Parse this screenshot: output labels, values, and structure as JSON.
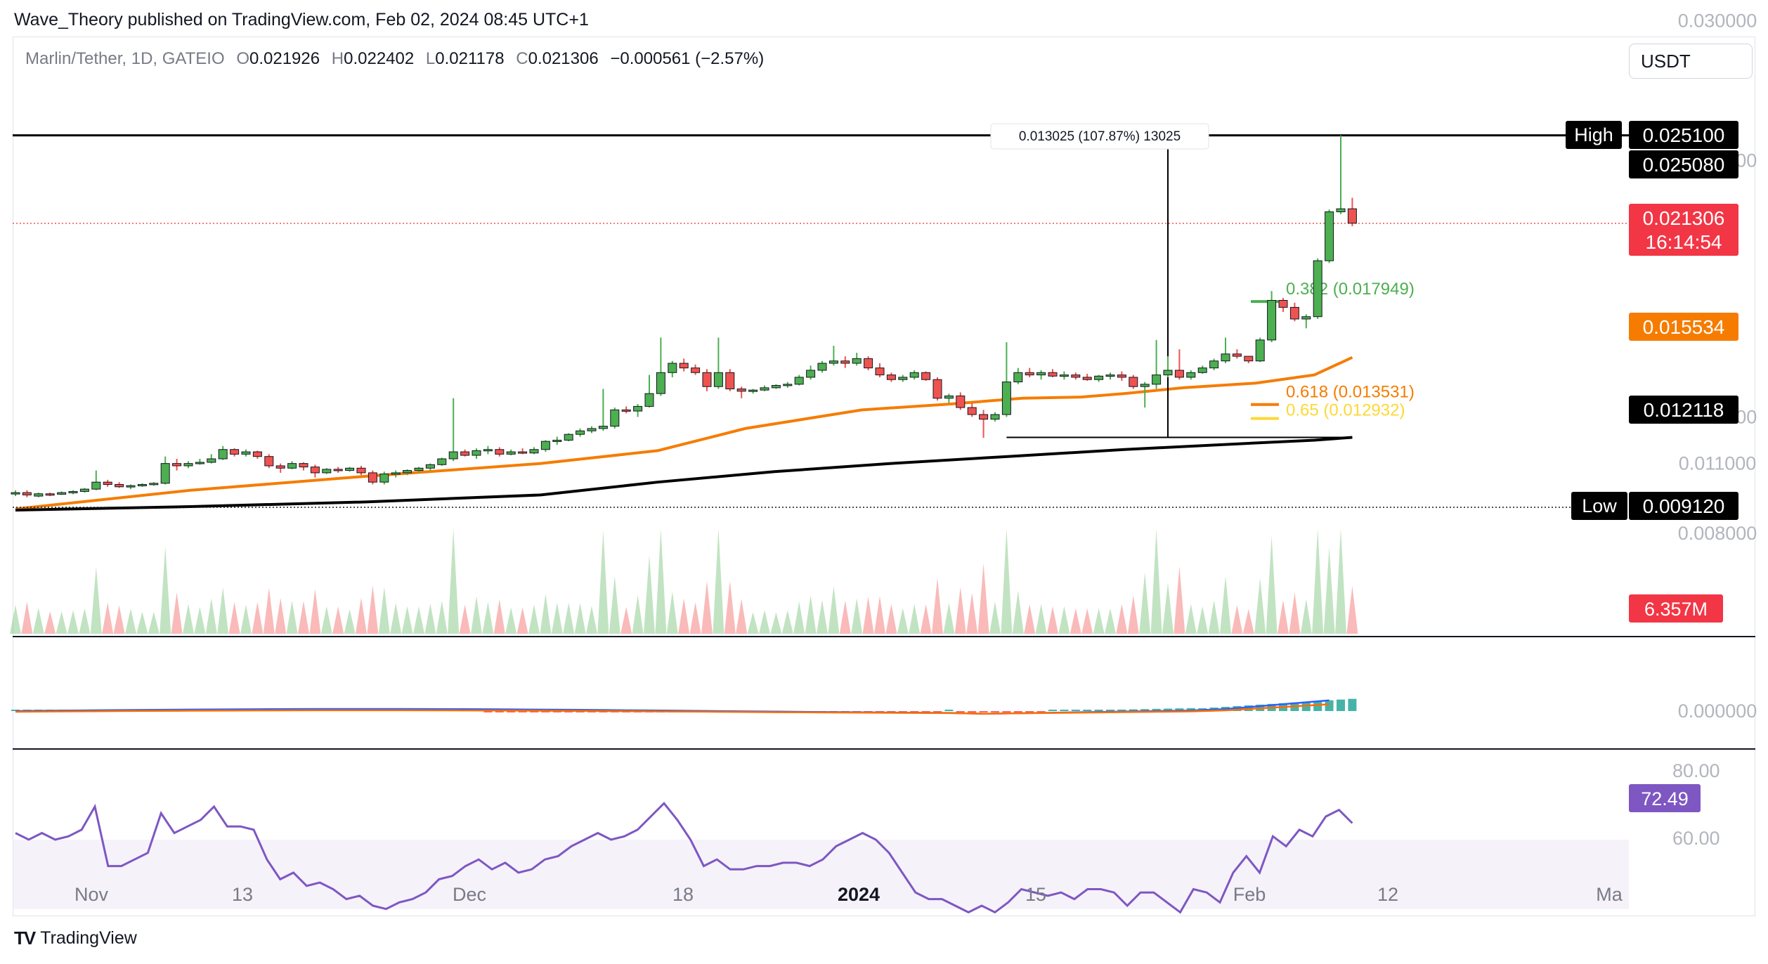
{
  "publisher_line": "Wave_Theory published on TradingView.com, Feb 02, 2024 08:45 UTC+1",
  "legend": {
    "symbol": "Marlin/Tether, 1D, GATEIO",
    "open_label": "O",
    "open": "0.021926",
    "high_label": "H",
    "high": "0.022402",
    "low_label": "L",
    "low": "0.021178",
    "close_label": "C",
    "close": "0.021306",
    "change": "−0.000561 (−2.57%)"
  },
  "currency_button": "USDT",
  "branding": {
    "logo_mark": "TV",
    "logo_text": "TradingView"
  },
  "colors": {
    "up": "#26a69a",
    "up_body": "#4caf50",
    "down": "#ef5350",
    "ema50": "#f57c00",
    "ema200": "#000000",
    "macd": "#2962ff",
    "signal": "#ff6d00",
    "rsi": "#7e57c2",
    "fib_382": "#4caf50",
    "fib_618": "#f57c00",
    "fib_65": "#fdd835"
  },
  "chart_data": {
    "type": "candlestick",
    "price_axis_labels": [
      "0.030000",
      "0.024000",
      "0.013000",
      "0.011000",
      "0.008000"
    ],
    "time_axis_labels": [
      "Nov",
      "13",
      "Dec",
      "18",
      "2024",
      "15",
      "Feb",
      "12",
      "Ma"
    ],
    "candles": [
      [
        0.00975,
        0.00985,
        0.0096,
        0.00975
      ],
      [
        0.00975,
        0.00985,
        0.00955,
        0.00965
      ],
      [
        0.0096,
        0.00975,
        0.00955,
        0.0097
      ],
      [
        0.0097,
        0.00975,
        0.0096,
        0.00968
      ],
      [
        0.00968,
        0.0098,
        0.00965,
        0.00975
      ],
      [
        0.00975,
        0.00985,
        0.00968,
        0.0098
      ],
      [
        0.0098,
        0.00995,
        0.00975,
        0.0099
      ],
      [
        0.0099,
        0.0107,
        0.00985,
        0.0102
      ],
      [
        0.0102,
        0.0103,
        0.01,
        0.0101
      ],
      [
        0.0101,
        0.0102,
        0.00995,
        0.01
      ],
      [
        0.01,
        0.0101,
        0.0099,
        0.01005
      ],
      [
        0.01005,
        0.01015,
        0.01,
        0.0101
      ],
      [
        0.0101,
        0.0102,
        0.01005,
        0.01015
      ],
      [
        0.01015,
        0.0113,
        0.0101,
        0.011
      ],
      [
        0.011,
        0.0112,
        0.0107,
        0.0109
      ],
      [
        0.0109,
        0.0111,
        0.0108,
        0.011
      ],
      [
        0.011,
        0.0112,
        0.01095,
        0.01105
      ],
      [
        0.01105,
        0.0114,
        0.011,
        0.0112
      ],
      [
        0.0112,
        0.01175,
        0.01115,
        0.0116
      ],
      [
        0.0116,
        0.01165,
        0.0113,
        0.0114
      ],
      [
        0.0114,
        0.0116,
        0.0113,
        0.0115
      ],
      [
        0.0115,
        0.01155,
        0.0112,
        0.0113
      ],
      [
        0.0113,
        0.0114,
        0.0108,
        0.0109
      ],
      [
        0.0109,
        0.011,
        0.0106,
        0.0108
      ],
      [
        0.0108,
        0.0111,
        0.01075,
        0.011
      ],
      [
        0.011,
        0.01105,
        0.0107,
        0.01085
      ],
      [
        0.01085,
        0.01095,
        0.0104,
        0.0106
      ],
      [
        0.0106,
        0.0108,
        0.01055,
        0.01075
      ],
      [
        0.01075,
        0.01085,
        0.0106,
        0.0107
      ],
      [
        0.0107,
        0.01085,
        0.01065,
        0.0108
      ],
      [
        0.0108,
        0.0109,
        0.0105,
        0.0106
      ],
      [
        0.0106,
        0.0107,
        0.0101,
        0.0102
      ],
      [
        0.0102,
        0.01065,
        0.0101,
        0.01055
      ],
      [
        0.01055,
        0.0107,
        0.0104,
        0.0106
      ],
      [
        0.0106,
        0.01075,
        0.0105,
        0.0107
      ],
      [
        0.0107,
        0.01085,
        0.0106,
        0.0108
      ],
      [
        0.0108,
        0.011,
        0.0107,
        0.01095
      ],
      [
        0.01095,
        0.01125,
        0.0109,
        0.0112
      ],
      [
        0.0112,
        0.0138,
        0.0111,
        0.0115
      ],
      [
        0.0115,
        0.0116,
        0.0113,
        0.01135
      ],
      [
        0.01135,
        0.01165,
        0.0112,
        0.01155
      ],
      [
        0.01155,
        0.01175,
        0.0114,
        0.0116
      ],
      [
        0.0116,
        0.0117,
        0.0113,
        0.0114
      ],
      [
        0.0114,
        0.0116,
        0.01135,
        0.0115
      ],
      [
        0.0115,
        0.01165,
        0.0114,
        0.01145
      ],
      [
        0.01145,
        0.0117,
        0.0114,
        0.0116
      ],
      [
        0.0116,
        0.012,
        0.0115,
        0.01195
      ],
      [
        0.01195,
        0.01215,
        0.0118,
        0.012
      ],
      [
        0.012,
        0.0123,
        0.01195,
        0.01225
      ],
      [
        0.01225,
        0.0125,
        0.01215,
        0.0124
      ],
      [
        0.0124,
        0.0126,
        0.0123,
        0.0125
      ],
      [
        0.0125,
        0.0142,
        0.0124,
        0.0126
      ],
      [
        0.0126,
        0.0134,
        0.0125,
        0.0133
      ],
      [
        0.0133,
        0.01345,
        0.01315,
        0.01325
      ],
      [
        0.01325,
        0.01355,
        0.013,
        0.01345
      ],
      [
        0.01345,
        0.0148,
        0.0134,
        0.014
      ],
      [
        0.014,
        0.0164,
        0.0139,
        0.0149
      ],
      [
        0.0149,
        0.0154,
        0.0147,
        0.0153
      ],
      [
        0.0153,
        0.0155,
        0.01495,
        0.0151
      ],
      [
        0.0151,
        0.01525,
        0.0148,
        0.0149
      ],
      [
        0.0149,
        0.01505,
        0.0141,
        0.0143
      ],
      [
        0.0143,
        0.0164,
        0.0142,
        0.0149
      ],
      [
        0.0149,
        0.01505,
        0.0141,
        0.0142
      ],
      [
        0.0142,
        0.0143,
        0.0138,
        0.0141
      ],
      [
        0.0141,
        0.0142,
        0.014,
        0.01415
      ],
      [
        0.01415,
        0.01435,
        0.0141,
        0.01425
      ],
      [
        0.01425,
        0.0144,
        0.0142,
        0.01435
      ],
      [
        0.01435,
        0.0145,
        0.01425,
        0.0144
      ],
      [
        0.0144,
        0.0148,
        0.01435,
        0.0147
      ],
      [
        0.0147,
        0.0152,
        0.0146,
        0.015
      ],
      [
        0.015,
        0.0154,
        0.0149,
        0.0153
      ],
      [
        0.0153,
        0.01605,
        0.0152,
        0.0154
      ],
      [
        0.0154,
        0.0156,
        0.0151,
        0.0153
      ],
      [
        0.0153,
        0.01575,
        0.0152,
        0.0155
      ],
      [
        0.0155,
        0.0156,
        0.015,
        0.0151
      ],
      [
        0.0151,
        0.0153,
        0.0147,
        0.0148
      ],
      [
        0.0148,
        0.0149,
        0.0145,
        0.0146
      ],
      [
        0.0146,
        0.0148,
        0.0145,
        0.0147
      ],
      [
        0.0147,
        0.015,
        0.0146,
        0.0149
      ],
      [
        0.0149,
        0.01495,
        0.01455,
        0.0146
      ],
      [
        0.0146,
        0.0147,
        0.0137,
        0.0138
      ],
      [
        0.0138,
        0.014,
        0.0136,
        0.0139
      ],
      [
        0.0139,
        0.01405,
        0.0133,
        0.0134
      ],
      [
        0.0134,
        0.0136,
        0.013,
        0.0131
      ],
      [
        0.0131,
        0.0133,
        0.0121,
        0.0129
      ],
      [
        0.0129,
        0.0132,
        0.0128,
        0.0131
      ],
      [
        0.0131,
        0.0162,
        0.013,
        0.0145
      ],
      [
        0.0145,
        0.0151,
        0.0144,
        0.0149
      ],
      [
        0.0149,
        0.0151,
        0.0147,
        0.0148
      ],
      [
        0.0148,
        0.015,
        0.0146,
        0.0149
      ],
      [
        0.0149,
        0.01505,
        0.0147,
        0.01475
      ],
      [
        0.01475,
        0.01495,
        0.0146,
        0.0148
      ],
      [
        0.0148,
        0.0149,
        0.0146,
        0.0147
      ],
      [
        0.0147,
        0.01485,
        0.01455,
        0.0146
      ],
      [
        0.0146,
        0.0148,
        0.0145,
        0.01475
      ],
      [
        0.01475,
        0.0149,
        0.0146,
        0.0148
      ],
      [
        0.0148,
        0.01495,
        0.01455,
        0.0147
      ],
      [
        0.0147,
        0.0148,
        0.0142,
        0.0143
      ],
      [
        0.0143,
        0.0145,
        0.0134,
        0.0144
      ],
      [
        0.0144,
        0.0163,
        0.0142,
        0.0148
      ],
      [
        0.0148,
        0.0156,
        0.0147,
        0.015
      ],
      [
        0.015,
        0.0159,
        0.0146,
        0.0147
      ],
      [
        0.0147,
        0.015,
        0.0146,
        0.0149
      ],
      [
        0.0149,
        0.0152,
        0.01485,
        0.0151
      ],
      [
        0.0151,
        0.0155,
        0.015,
        0.0154
      ],
      [
        0.0154,
        0.0164,
        0.0153,
        0.0157
      ],
      [
        0.0157,
        0.0159,
        0.0155,
        0.0156
      ],
      [
        0.0156,
        0.0156,
        0.0153,
        0.0154
      ],
      [
        0.0154,
        0.0164,
        0.01535,
        0.0163
      ],
      [
        0.0163,
        0.0184,
        0.0162,
        0.018
      ],
      [
        0.018,
        0.0181,
        0.0175,
        0.0177
      ],
      [
        0.0177,
        0.0179,
        0.0171,
        0.0172
      ],
      [
        0.0172,
        0.0174,
        0.0168,
        0.0173
      ],
      [
        0.0173,
        0.0198,
        0.0172,
        0.0197
      ],
      [
        0.0197,
        0.0219,
        0.0196,
        0.0218
      ],
      [
        0.0218,
        0.02508,
        0.0217,
        0.02193
      ],
      [
        0.02193,
        0.0224,
        0.02118,
        0.02131
      ]
    ],
    "ema50": [
      [
        0,
        0.00905
      ],
      [
        60,
        0.00985
      ],
      [
        120,
        0.01045
      ],
      [
        180,
        0.011
      ],
      [
        220,
        0.01155
      ],
      [
        250,
        0.0125
      ],
      [
        290,
        0.0133
      ],
      [
        320,
        0.01355
      ],
      [
        345,
        0.0138
      ],
      [
        365,
        0.01385
      ],
      [
        380,
        0.014
      ],
      [
        400,
        0.01425
      ],
      [
        425,
        0.01445
      ],
      [
        445,
        0.0148
      ],
      [
        458,
        0.01555
      ]
    ],
    "ema200": [
      [
        0,
        0.009
      ],
      [
        60,
        0.00915
      ],
      [
        120,
        0.00935
      ],
      [
        180,
        0.00965
      ],
      [
        220,
        0.0102
      ],
      [
        260,
        0.01065
      ],
      [
        300,
        0.011
      ],
      [
        340,
        0.0113
      ],
      [
        380,
        0.0116
      ],
      [
        420,
        0.01185
      ],
      [
        445,
        0.012
      ],
      [
        458,
        0.01212
      ]
    ],
    "volume_panel": {
      "current_label": "6.357M"
    },
    "macd_panel": {
      "axis_label": "0.000000"
    },
    "rsi_panel": {
      "axis_labels": [
        "80.00",
        "60.00"
      ],
      "current": "72.49",
      "values": [
        72,
        70,
        72,
        70,
        71,
        73,
        80,
        62,
        62,
        64,
        66,
        78,
        72,
        74,
        76,
        80,
        74,
        74,
        73,
        64,
        58,
        60,
        56,
        57,
        55,
        52,
        53,
        50,
        49,
        51,
        52,
        54,
        58,
        59,
        62,
        64,
        61,
        63,
        60,
        61,
        64,
        65,
        68,
        70,
        72,
        70,
        71,
        73,
        77,
        81,
        76,
        70,
        62,
        64,
        61,
        61,
        62,
        62,
        63,
        63,
        62,
        64,
        68,
        70,
        72,
        70,
        66,
        60,
        54,
        52,
        52,
        50,
        46,
        50,
        48,
        51,
        55,
        54,
        53,
        54,
        52,
        55,
        55,
        54,
        50,
        54,
        54,
        51,
        48,
        55,
        54,
        51,
        60,
        65,
        60,
        71,
        68,
        73,
        71,
        77,
        79,
        75
      ]
    },
    "price_scale_labels": [
      {
        "text": "High",
        "value": "0.025100"
      },
      {
        "text": "",
        "value": "0.025080"
      },
      {
        "text": "",
        "value": "0.021306",
        "sub": "16:14:54"
      },
      {
        "text": "",
        "value": "0.015534"
      },
      {
        "text": "",
        "value": "0.012118"
      },
      {
        "text": "Low",
        "value": "0.009120"
      }
    ],
    "fib_labels": [
      {
        "text": "0.382 (0.017949)",
        "value": 0.017949
      },
      {
        "text": "0.618 (0.013531)",
        "value": 0.013531
      },
      {
        "text": "0.65 (0.012932)",
        "value": 0.012932
      }
    ],
    "measure_label": "0.013025 (107.87%) 13025",
    "resistance_level": 0.02508,
    "support_level": 0.01212,
    "low_level": 0.00912,
    "current_price": 0.021306
  }
}
